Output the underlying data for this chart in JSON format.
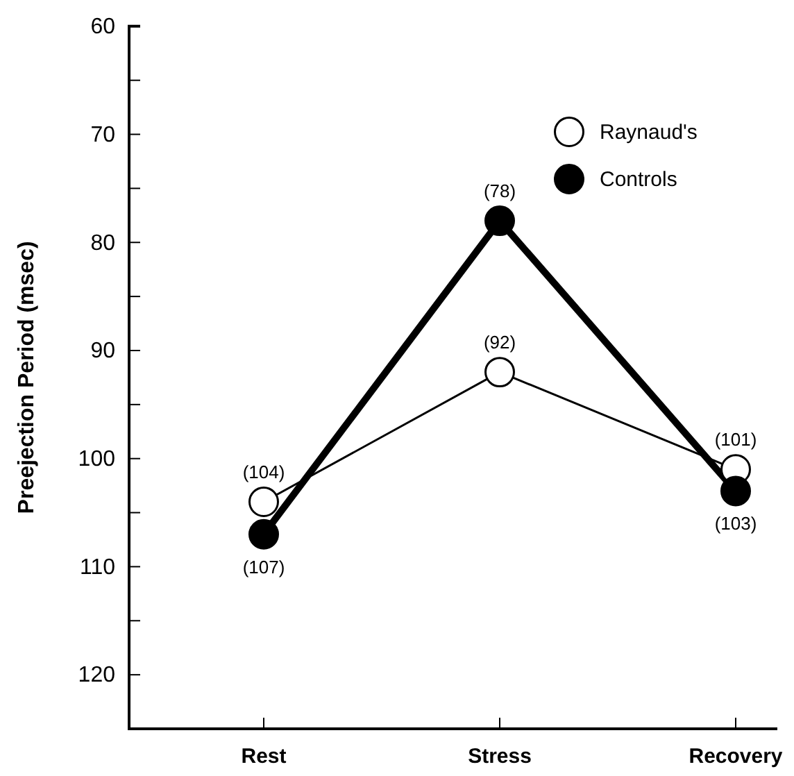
{
  "chart_data": {
    "type": "line",
    "ylabel": "Preejection Period (msec)",
    "categories": [
      "Rest",
      "Stress",
      "Recovery"
    ],
    "ylim": [
      125,
      60
    ],
    "yticks": [
      60,
      {
        "value": 65,
        "label": null
      },
      70,
      {
        "value": 75,
        "label": null
      },
      80,
      {
        "value": 85,
        "label": null
      },
      90,
      {
        "value": 95,
        "label": null
      },
      100,
      {
        "value": 105,
        "label": null
      },
      110,
      {
        "value": 115,
        "label": null
      },
      120
    ],
    "marker": "circle",
    "legend": "top right",
    "series": [
      {
        "name": "Raynaud's",
        "color": "#000000",
        "values": [
          104,
          92,
          101
        ],
        "value_labels": [
          "(104)",
          "(92)",
          "(101)"
        ]
      },
      {
        "name": "Controls",
        "color": "#000000",
        "values": [
          107,
          78,
          103
        ],
        "value_labels": [
          "(107)",
          "(78)",
          "(103)"
        ]
      }
    ]
  }
}
